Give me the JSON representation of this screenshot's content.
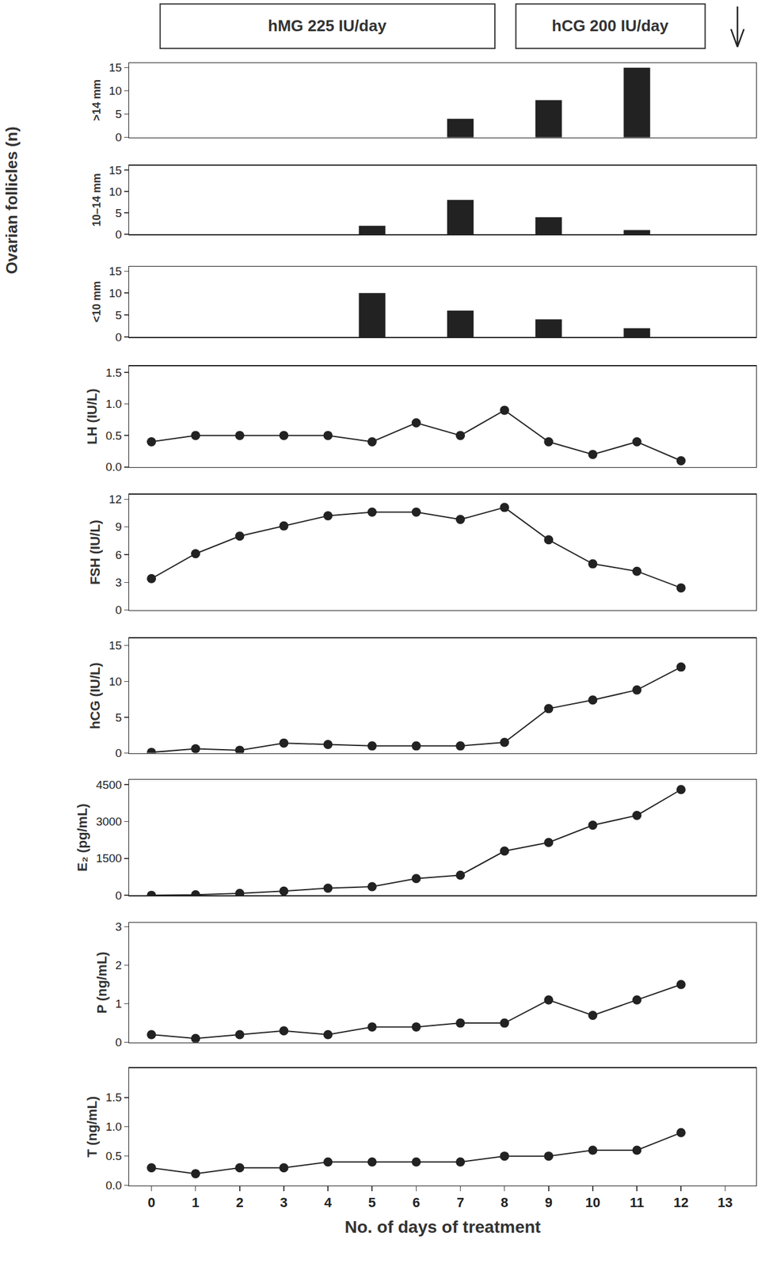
{
  "chart_data": [
    {
      "type": "bar",
      "ylabel": ">14 mm",
      "x": [
        7,
        9,
        11
      ],
      "values": [
        4,
        8,
        15
      ],
      "color": "#222222",
      "ylim": [
        0,
        16
      ],
      "yticks": [
        0,
        5,
        10,
        15
      ]
    },
    {
      "type": "bar",
      "ylabel": "10–14 mm",
      "x": [
        5,
        7,
        9,
        11
      ],
      "values": [
        2,
        8,
        4,
        1
      ],
      "color": "#222222",
      "ylim": [
        0,
        16
      ],
      "yticks": [
        0,
        5,
        10,
        15
      ]
    },
    {
      "type": "bar",
      "ylabel": "<10 mm",
      "x": [
        5,
        7,
        9,
        11
      ],
      "values": [
        10,
        6,
        4,
        2
      ],
      "color": "#222222",
      "ylim": [
        0,
        16
      ],
      "yticks": [
        0,
        5,
        10,
        15
      ]
    },
    {
      "type": "line",
      "ylabel": "LH (IU/L)",
      "x": [
        0,
        1,
        2,
        3,
        4,
        5,
        6,
        7,
        8,
        9,
        10,
        11,
        12
      ],
      "values": [
        0.4,
        0.5,
        0.5,
        0.5,
        0.5,
        0.4,
        0.7,
        0.5,
        0.9,
        0.4,
        0.2,
        0.4,
        0.1
      ],
      "color": "#222222",
      "marker": "circle",
      "ylim": [
        0,
        1.6
      ],
      "yticks": [
        {
          "value": 0,
          "label": "0.0"
        },
        0.5,
        {
          "value": 1,
          "label": "1.0"
        },
        1.5
      ]
    },
    {
      "type": "line",
      "ylabel": "FSH (IU/L)",
      "x": [
        0,
        1,
        2,
        3,
        4,
        5,
        6,
        7,
        8,
        9,
        10,
        11,
        12
      ],
      "values": [
        3.4,
        6.1,
        8,
        9.1,
        10.2,
        10.6,
        10.6,
        9.8,
        11.1,
        7.6,
        5,
        4.2,
        2.4
      ],
      "color": "#222222",
      "marker": "circle",
      "ylim": [
        0,
        12.5
      ],
      "yticks": [
        0,
        3,
        6,
        9,
        12
      ]
    },
    {
      "type": "line",
      "ylabel": "hCG (IU/L)",
      "x": [
        0,
        1,
        2,
        3,
        4,
        5,
        6,
        7,
        8,
        9,
        10,
        11,
        12
      ],
      "values": [
        0.1,
        0.6,
        0.4,
        1.4,
        1.2,
        1,
        1,
        1,
        1.5,
        6.2,
        7.4,
        8.8,
        12
      ],
      "color": "#222222",
      "marker": "circle",
      "ylim": [
        0,
        16
      ],
      "yticks": [
        0,
        5,
        10,
        15
      ]
    },
    {
      "type": "line",
      "ylabel": "E₂ (pg/mL)",
      "x": [
        0,
        1,
        2,
        3,
        4,
        5,
        6,
        7,
        8,
        9,
        10,
        11,
        12
      ],
      "values": [
        0,
        20,
        80,
        170,
        290,
        350,
        680,
        820,
        1800,
        2150,
        2850,
        3250,
        4300
      ],
      "color": "#222222",
      "marker": "circle",
      "ylim": [
        0,
        4700
      ],
      "yticks": [
        0,
        1500,
        3000,
        4500
      ]
    },
    {
      "type": "line",
      "ylabel": "P (ng/mL)",
      "x": [
        0,
        1,
        2,
        3,
        4,
        5,
        6,
        7,
        8,
        9,
        10,
        11,
        12
      ],
      "values": [
        0.2,
        0.1,
        0.2,
        0.3,
        0.2,
        0.4,
        0.4,
        0.5,
        0.5,
        1.1,
        0.7,
        1.1,
        1.5
      ],
      "color": "#222222",
      "marker": "circle",
      "ylim": [
        0,
        3.1
      ],
      "yticks": [
        0,
        1,
        2,
        3
      ]
    },
    {
      "type": "line",
      "ylabel": "T (ng/mL)",
      "x": [
        0,
        1,
        2,
        3,
        4,
        5,
        6,
        7,
        8,
        9,
        10,
        11,
        12
      ],
      "values": [
        0.3,
        0.2,
        0.3,
        0.3,
        0.4,
        0.4,
        0.4,
        0.4,
        0.5,
        0.5,
        0.6,
        0.6,
        0.9
      ],
      "color": "#222222",
      "marker": "circle",
      "ylim": [
        0,
        2
      ],
      "yticks": [
        {
          "value": 0,
          "label": "0.0"
        },
        0.5,
        {
          "value": 1,
          "label": "1.0"
        },
        1.5
      ]
    }
  ],
  "shared": {
    "xlabel": "No. of days of treatment",
    "xlim": [
      -0.5,
      13.7
    ],
    "xticks": [
      0,
      1,
      2,
      3,
      4,
      5,
      6,
      7,
      8,
      9,
      10,
      11,
      12,
      13
    ],
    "group_ylabel": "Ovarian follicles (n)",
    "annotations": [
      "hMG 225 IU/day",
      "hCG 200 IU/day"
    ]
  }
}
